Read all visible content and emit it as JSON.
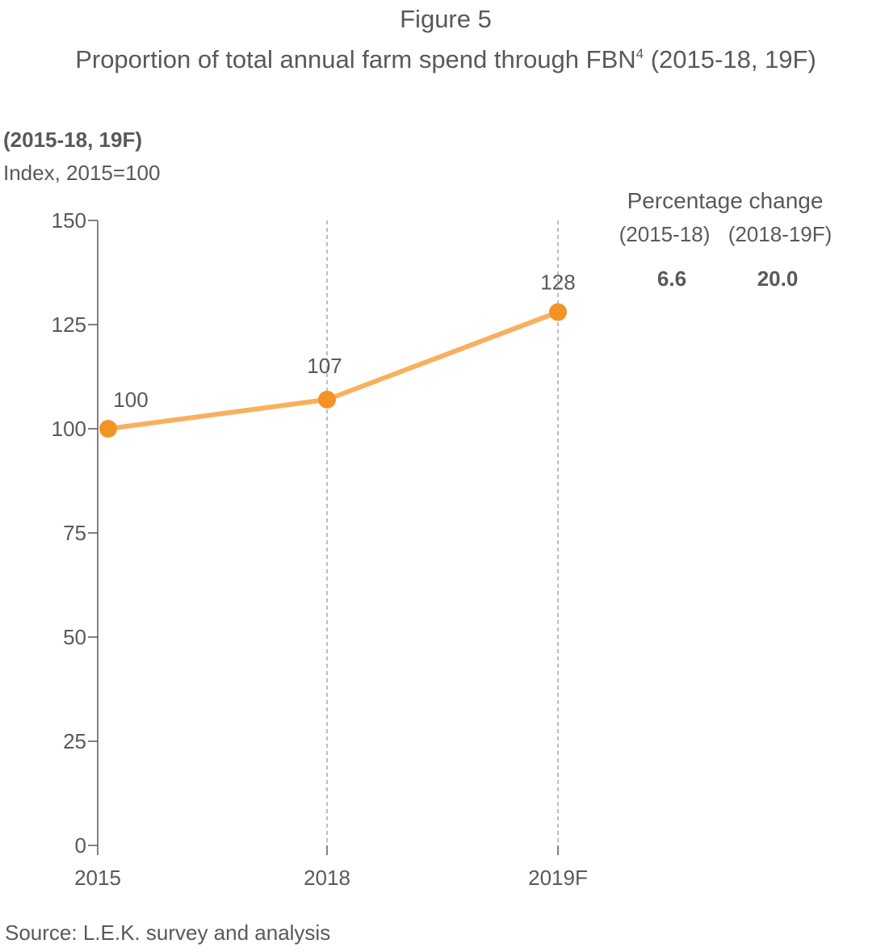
{
  "figure_label": "Figure 5",
  "title": "Proportion of total annual farm spend through FBN",
  "title_sup": "4",
  "title_suffix": " (2015-18, 19F)",
  "subtitle_bold": "(2015-18, 19F)",
  "subtitle": "Index, 2015=100",
  "percentage_change": {
    "title": "Percentage change",
    "periods": [
      "(2015-18)",
      "(2018-19F)"
    ],
    "values": [
      "6.6",
      "20.0"
    ]
  },
  "source": "Source: L.E.K. survey and analysis",
  "colors": {
    "line": "#f7b15e",
    "marker": "#f39325",
    "text": "#595959",
    "axis": "#595959",
    "gridline": "#9a9a9a"
  },
  "chart_data": {
    "type": "line",
    "x": [
      "2015",
      "2018",
      "2019F"
    ],
    "series": [
      {
        "values": [
          100,
          107,
          128
        ]
      }
    ],
    "data_labels": [
      "100",
      "107",
      "128"
    ],
    "ylim": [
      0,
      150
    ],
    "yticks": [
      0,
      25,
      50,
      75,
      100,
      125,
      150
    ],
    "ytick_labels": [
      "0",
      "25",
      "50",
      "75",
      "100",
      "125",
      "150"
    ],
    "xlabel": "",
    "ylabel": "Index, 2015=100",
    "grid": "vertical dashed at 2018 and 2019F"
  }
}
